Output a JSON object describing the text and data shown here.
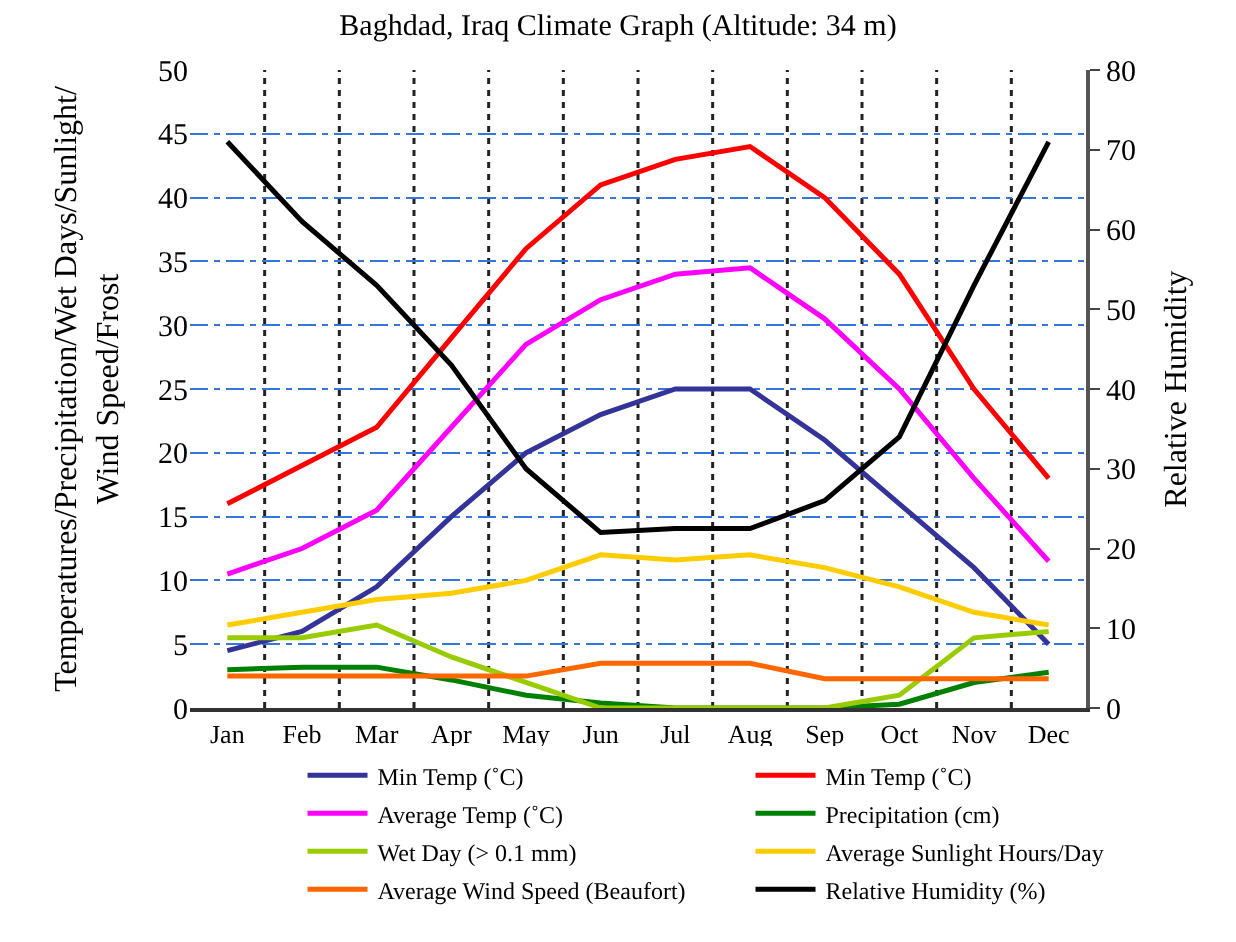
{
  "chart_data": {
    "type": "line",
    "title": "Baghdad, Iraq Climate Graph (Altitude: 34 m)",
    "ylabel": "Temperatures/Precipitation/Wet Days/Sunlight/\nWind Speed/Frost",
    "y2label": "Relative Humidity",
    "categories": [
      "Jan",
      "Feb",
      "Mar",
      "Apr",
      "May",
      "Jun",
      "Jul",
      "Aug",
      "Sep",
      "Oct",
      "Nov",
      "Dec"
    ],
    "series": [
      {
        "name": "Min Temp (˚C)",
        "color": "#333399",
        "values": [
          4.5,
          6,
          9.5,
          15,
          20,
          23,
          25,
          25,
          21,
          16,
          11,
          5
        ]
      },
      {
        "name": "Min Temp (˚C)",
        "color": "#ff0000",
        "values": [
          16,
          19,
          22,
          29,
          36,
          41,
          43,
          44,
          40,
          34,
          25,
          18
        ]
      },
      {
        "name": "Average Temp (˚C)",
        "color": "#ff00ff",
        "values": [
          10.5,
          12.5,
          15.5,
          22,
          28.5,
          32,
          34,
          34.5,
          30.5,
          25,
          18,
          11.5
        ]
      },
      {
        "name": "Precipitation (cm)",
        "color": "#008000",
        "values": [
          3,
          3.2,
          3.2,
          2.2,
          1,
          0.4,
          0,
          0,
          0,
          0.3,
          2,
          2.8
        ]
      },
      {
        "name": "Wet Day (> 0.1 mm)",
        "color": "#99cc00",
        "values": [
          5.5,
          5.5,
          6.5,
          4,
          2,
          0,
          0,
          0,
          0,
          1,
          5.5,
          6
        ]
      },
      {
        "name": "Average Sunlight Hours/Day",
        "color": "#ffcc00",
        "values": [
          6.5,
          7.5,
          8.5,
          9,
          10,
          12,
          11.6,
          12,
          11,
          9.5,
          7.5,
          6.5
        ]
      },
      {
        "name": "Average Wind Speed (Beaufort)",
        "color": "#ff6600",
        "values": [
          2.5,
          2.5,
          2.5,
          2.5,
          2.5,
          3.5,
          3.5,
          3.5,
          2.3,
          2.3,
          2.3,
          2.3
        ]
      },
      {
        "name": "Relative Humidity (%)",
        "color": "#000000",
        "axis": "y2",
        "values": [
          71,
          61,
          53,
          43,
          30,
          22,
          22.5,
          22.5,
          26,
          34,
          53,
          71
        ]
      }
    ],
    "ylim": [
      0,
      50
    ],
    "yticks": [
      0,
      5,
      10,
      15,
      20,
      25,
      30,
      35,
      40,
      45,
      50
    ],
    "y2lim": [
      0,
      80
    ],
    "y2ticks": [
      0,
      10,
      20,
      30,
      40,
      50,
      60,
      70,
      80
    ],
    "grid": true,
    "legend": "bottom",
    "marker": "none",
    "line_style": "solid"
  }
}
